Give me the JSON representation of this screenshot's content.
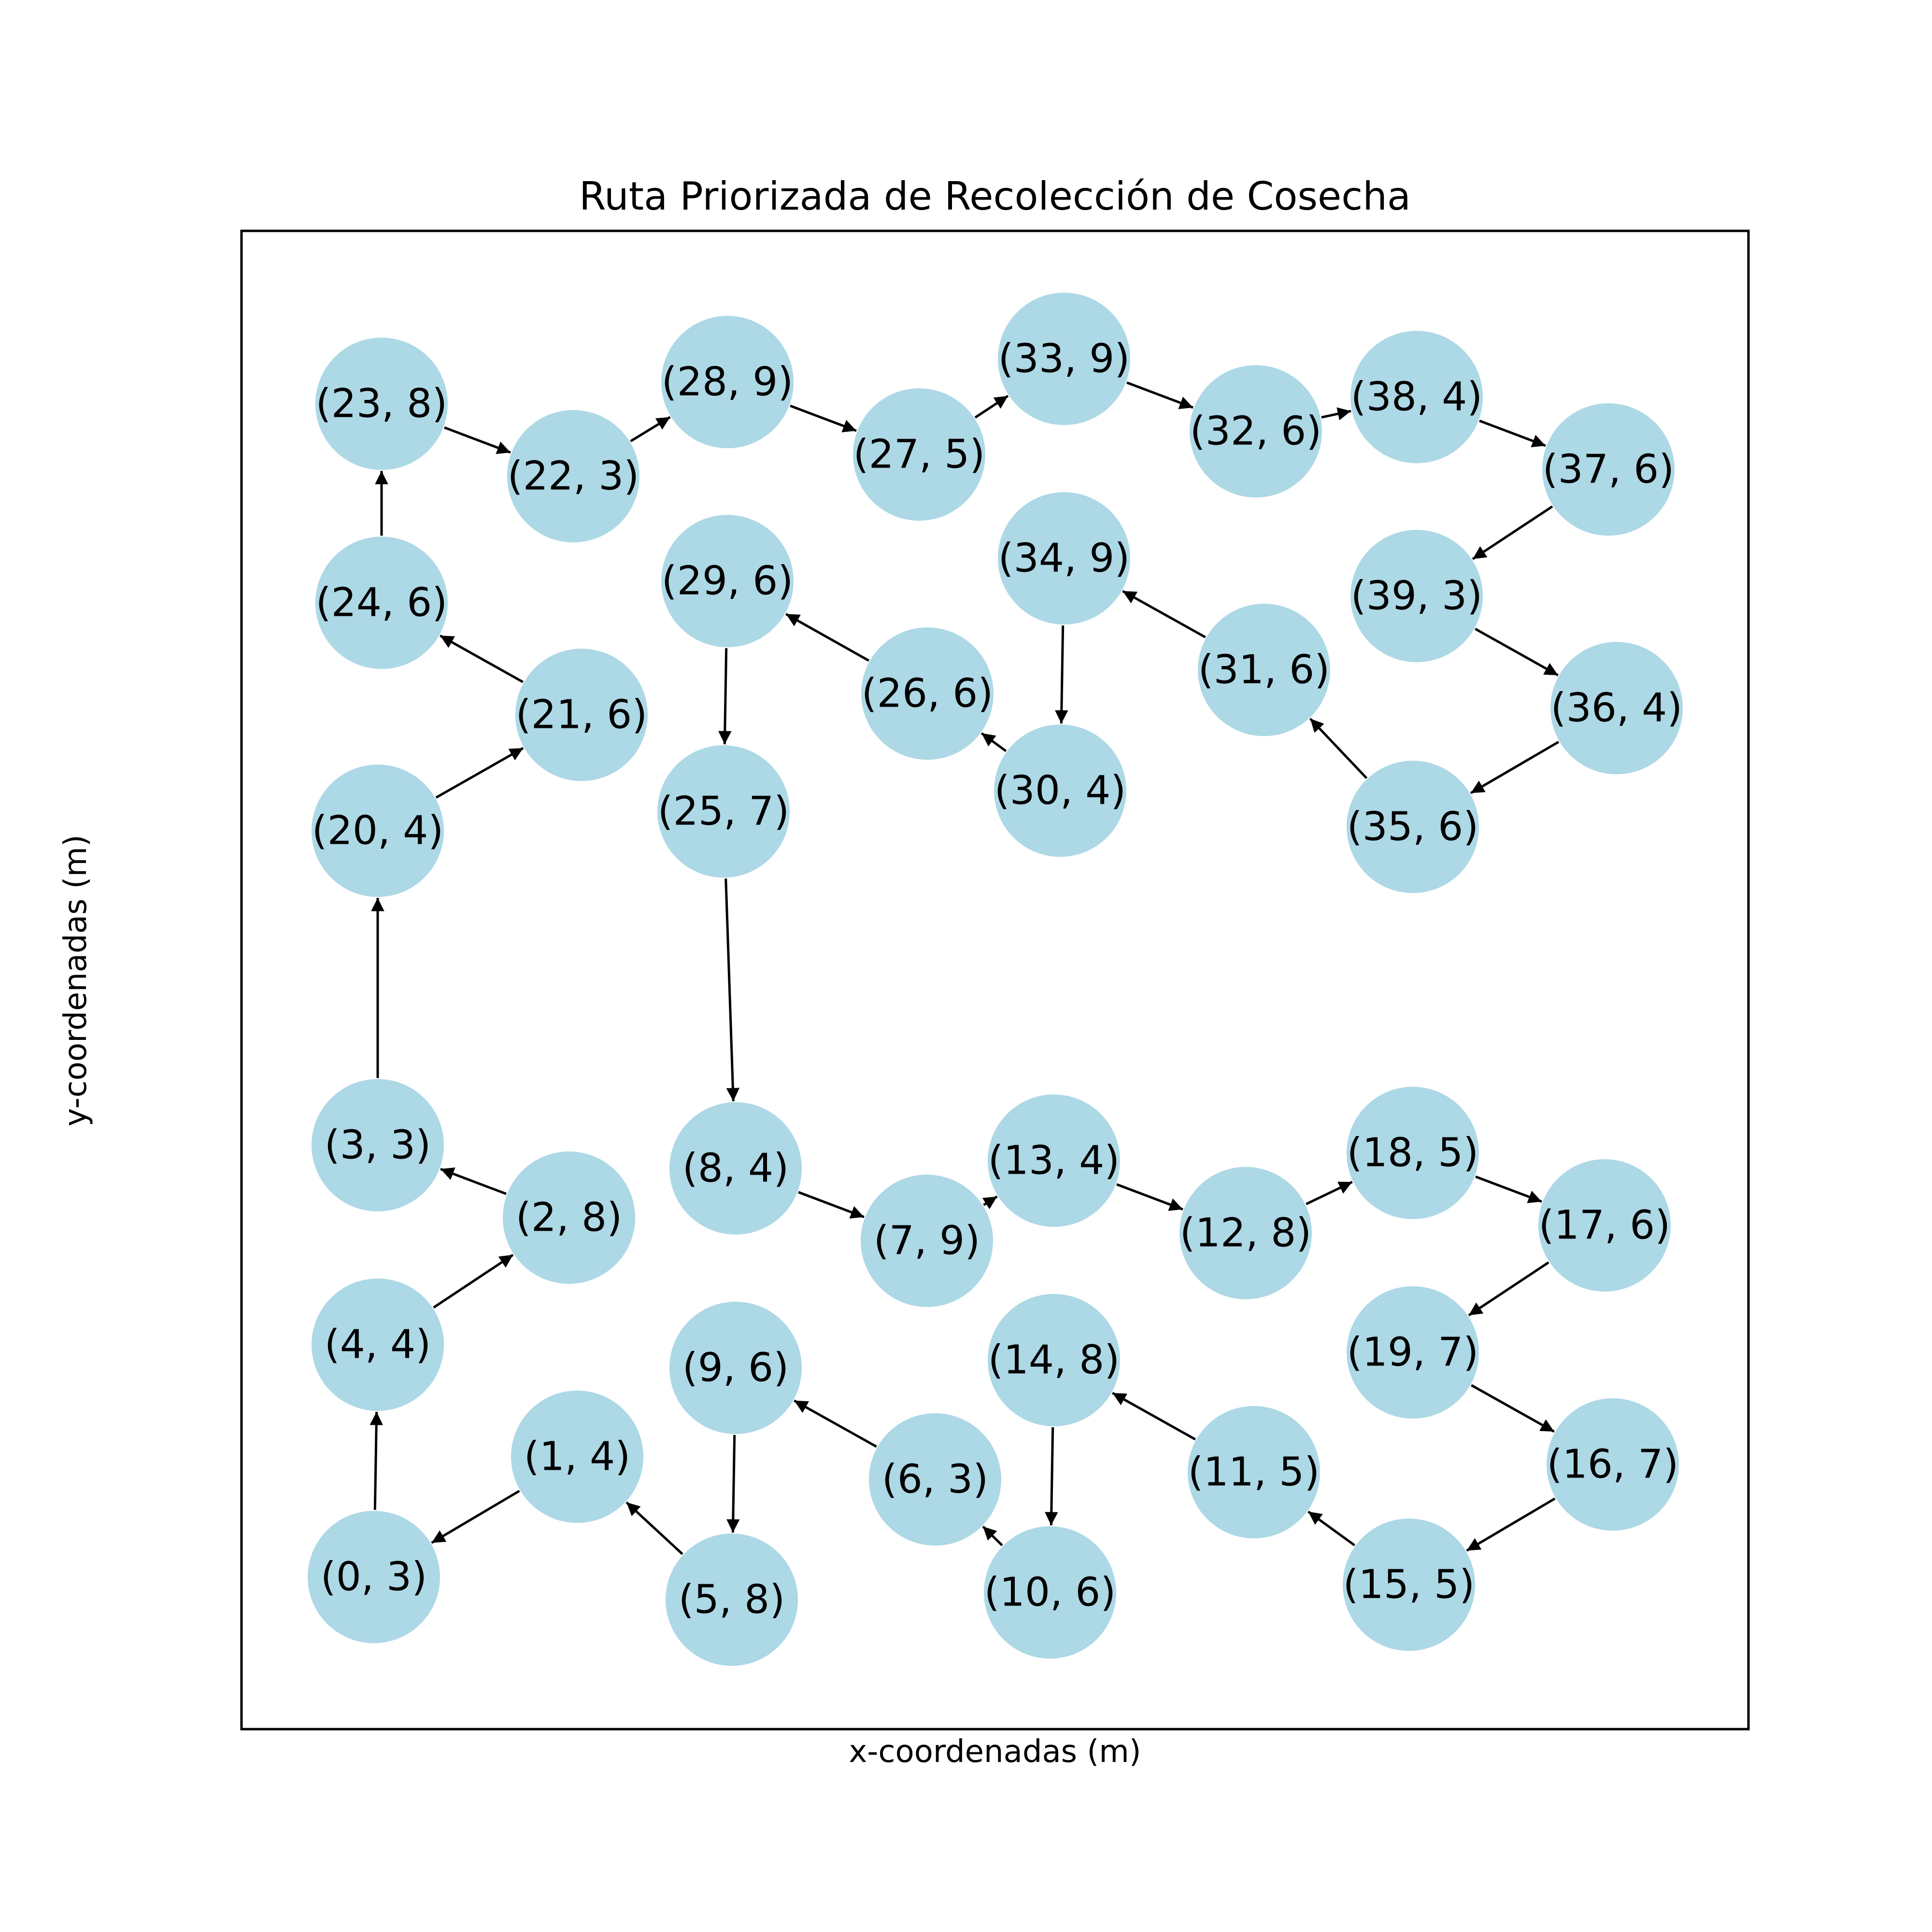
{
  "title": "Ruta Priorizada de Recolección de Cosecha",
  "x_axis_label": "x-coordenadas (m)",
  "y_axis_label": "y-coordenadas (m)",
  "colors": {
    "node_fill": "#add8e6",
    "edge": "#000000",
    "frame": "#000000"
  },
  "nodes": [
    {
      "id": "n0",
      "label": "(0, 3)"
    },
    {
      "id": "n1",
      "label": "(1, 4)"
    },
    {
      "id": "n2",
      "label": "(2, 8)"
    },
    {
      "id": "n3",
      "label": "(3, 3)"
    },
    {
      "id": "n4",
      "label": "(4, 4)"
    },
    {
      "id": "n5",
      "label": "(5, 8)"
    },
    {
      "id": "n6",
      "label": "(6, 3)"
    },
    {
      "id": "n7",
      "label": "(7, 9)"
    },
    {
      "id": "n8",
      "label": "(8, 4)"
    },
    {
      "id": "n9",
      "label": "(9, 6)"
    },
    {
      "id": "n10",
      "label": "(10, 6)"
    },
    {
      "id": "n11",
      "label": "(11, 5)"
    },
    {
      "id": "n12",
      "label": "(12, 8)"
    },
    {
      "id": "n13",
      "label": "(13, 4)"
    },
    {
      "id": "n14",
      "label": "(14, 8)"
    },
    {
      "id": "n15",
      "label": "(15, 5)"
    },
    {
      "id": "n16",
      "label": "(16, 7)"
    },
    {
      "id": "n17",
      "label": "(17, 6)"
    },
    {
      "id": "n18",
      "label": "(18, 5)"
    },
    {
      "id": "n19",
      "label": "(19, 7)"
    },
    {
      "id": "n20",
      "label": "(20, 4)"
    },
    {
      "id": "n21",
      "label": "(21, 6)"
    },
    {
      "id": "n22",
      "label": "(22, 3)"
    },
    {
      "id": "n23",
      "label": "(23, 8)"
    },
    {
      "id": "n24",
      "label": "(24, 6)"
    },
    {
      "id": "n25",
      "label": "(25, 7)"
    },
    {
      "id": "n26",
      "label": "(26, 6)"
    },
    {
      "id": "n27",
      "label": "(27, 5)"
    },
    {
      "id": "n28",
      "label": "(28, 9)"
    },
    {
      "id": "n29",
      "label": "(29, 6)"
    },
    {
      "id": "n30",
      "label": "(30, 4)"
    },
    {
      "id": "n31",
      "label": "(31, 6)"
    },
    {
      "id": "n32",
      "label": "(32, 6)"
    },
    {
      "id": "n33",
      "label": "(33, 9)"
    },
    {
      "id": "n34",
      "label": "(34, 9)"
    },
    {
      "id": "n35",
      "label": "(35, 6)"
    },
    {
      "id": "n36",
      "label": "(36, 4)"
    },
    {
      "id": "n37",
      "label": "(37, 6)"
    },
    {
      "id": "n38",
      "label": "(38, 4)"
    },
    {
      "id": "n39",
      "label": "(39, 3)"
    }
  ],
  "edges": [
    {
      "from": "n0",
      "to": "n4"
    },
    {
      "from": "n4",
      "to": "n2"
    },
    {
      "from": "n2",
      "to": "n3"
    },
    {
      "from": "n3",
      "to": "n20"
    },
    {
      "from": "n20",
      "to": "n21"
    },
    {
      "from": "n21",
      "to": "n24"
    },
    {
      "from": "n24",
      "to": "n23"
    },
    {
      "from": "n23",
      "to": "n22"
    },
    {
      "from": "n22",
      "to": "n28"
    },
    {
      "from": "n28",
      "to": "n27"
    },
    {
      "from": "n27",
      "to": "n33"
    },
    {
      "from": "n33",
      "to": "n32"
    },
    {
      "from": "n32",
      "to": "n38"
    },
    {
      "from": "n38",
      "to": "n37"
    },
    {
      "from": "n37",
      "to": "n39"
    },
    {
      "from": "n39",
      "to": "n36"
    },
    {
      "from": "n36",
      "to": "n35"
    },
    {
      "from": "n35",
      "to": "n31"
    },
    {
      "from": "n31",
      "to": "n34"
    },
    {
      "from": "n34",
      "to": "n30"
    },
    {
      "from": "n30",
      "to": "n26"
    },
    {
      "from": "n26",
      "to": "n29"
    },
    {
      "from": "n29",
      "to": "n25"
    },
    {
      "from": "n25",
      "to": "n8"
    },
    {
      "from": "n8",
      "to": "n7"
    },
    {
      "from": "n7",
      "to": "n13"
    },
    {
      "from": "n13",
      "to": "n12"
    },
    {
      "from": "n12",
      "to": "n18"
    },
    {
      "from": "n18",
      "to": "n17"
    },
    {
      "from": "n17",
      "to": "n19"
    },
    {
      "from": "n19",
      "to": "n16"
    },
    {
      "from": "n16",
      "to": "n15"
    },
    {
      "from": "n15",
      "to": "n11"
    },
    {
      "from": "n11",
      "to": "n14"
    },
    {
      "from": "n14",
      "to": "n10"
    },
    {
      "from": "n10",
      "to": "n6"
    },
    {
      "from": "n6",
      "to": "n9"
    },
    {
      "from": "n9",
      "to": "n5"
    },
    {
      "from": "n5",
      "to": "n1"
    },
    {
      "from": "n1",
      "to": "n0"
    }
  ]
}
